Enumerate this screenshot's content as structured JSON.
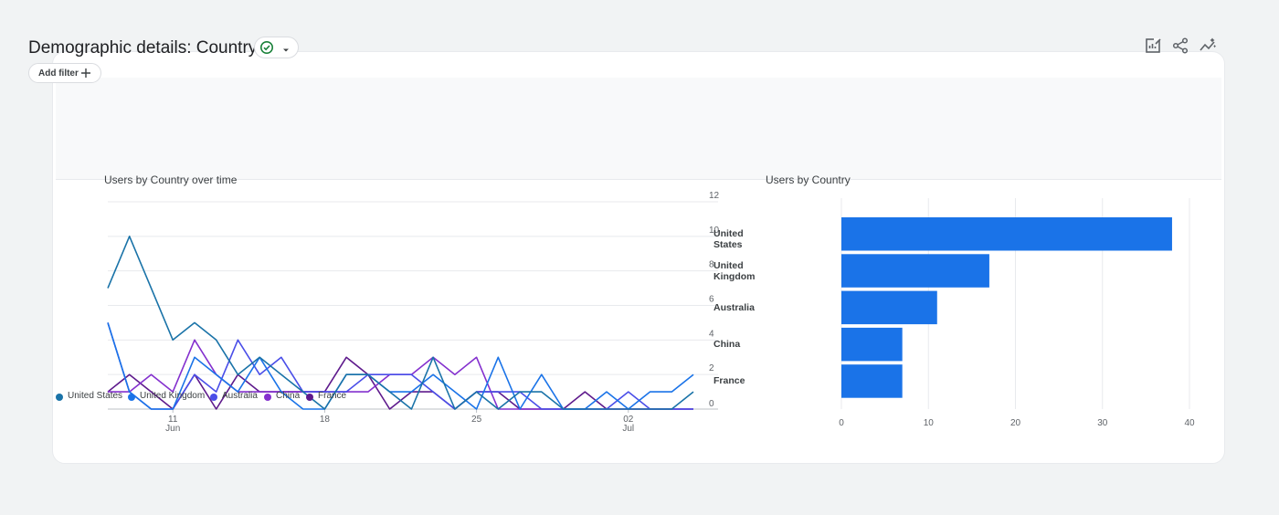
{
  "header": {
    "title": "Demographic details: Country",
    "add_filter_label": "Add filter",
    "icons": [
      "check-circle-icon",
      "caret-down-icon",
      "plus-icon",
      "customize-report-icon",
      "share-icon",
      "insights-icon"
    ],
    "colors": {
      "check": "#188038",
      "icon": "#5f6368"
    }
  },
  "line_card": {
    "title": "Users by Country over time"
  },
  "bar_card": {
    "title": "Users by Country"
  },
  "chart_data": [
    {
      "type": "line",
      "title": "Users by Country over time",
      "x_tick_labels": [
        {
          "date": "2023-06-11",
          "lines": [
            "11",
            "Jun"
          ]
        },
        {
          "date": "2023-06-18",
          "lines": [
            "18"
          ]
        },
        {
          "date": "2023-06-25",
          "lines": [
            "25"
          ]
        },
        {
          "date": "2023-07-02",
          "lines": [
            "02",
            "Jul"
          ]
        }
      ],
      "x": [
        "2023-06-08",
        "2023-06-09",
        "2023-06-10",
        "2023-06-11",
        "2023-06-12",
        "2023-06-13",
        "2023-06-14",
        "2023-06-15",
        "2023-06-16",
        "2023-06-17",
        "2023-06-18",
        "2023-06-19",
        "2023-06-20",
        "2023-06-21",
        "2023-06-22",
        "2023-06-23",
        "2023-06-24",
        "2023-06-25",
        "2023-06-26",
        "2023-06-27",
        "2023-06-28",
        "2023-06-29",
        "2023-06-30",
        "2023-07-01",
        "2023-07-02",
        "2023-07-03",
        "2023-07-04",
        "2023-07-05"
      ],
      "y_ticks": [
        0,
        2,
        4,
        6,
        8,
        10,
        12
      ],
      "ylim": [
        0,
        12
      ],
      "y_axis_side": "right",
      "grid": true,
      "legend_position": "bottom",
      "series": [
        {
          "name": "United States",
          "color": "#1a73a8",
          "values": [
            7,
            10,
            7,
            4,
            5,
            4,
            2,
            3,
            2,
            1,
            0,
            2,
            2,
            1,
            0,
            3,
            0,
            1,
            0,
            1,
            1,
            0,
            0,
            0,
            0,
            0,
            0,
            1
          ]
        },
        {
          "name": "United Kingdom",
          "color": "#1a73e8",
          "values": [
            5,
            1,
            0,
            0,
            3,
            2,
            1,
            3,
            1,
            0,
            0,
            2,
            2,
            1,
            1,
            2,
            1,
            0,
            3,
            0,
            2,
            0,
            0,
            1,
            0,
            1,
            1,
            2
          ]
        },
        {
          "name": "Australia",
          "color": "#4a4ee8",
          "values": [
            5,
            1,
            0,
            0,
            2,
            1,
            4,
            2,
            3,
            1,
            1,
            1,
            2,
            2,
            2,
            1,
            0,
            1,
            1,
            1,
            0,
            0,
            0,
            0,
            1,
            0,
            0,
            0
          ]
        },
        {
          "name": "China",
          "color": "#8430ce",
          "values": [
            1,
            1,
            2,
            1,
            4,
            2,
            1,
            1,
            1,
            1,
            1,
            1,
            1,
            2,
            2,
            3,
            2,
            3,
            0,
            0,
            0,
            0,
            0,
            0,
            0,
            0,
            0,
            0
          ]
        },
        {
          "name": "France",
          "color": "#5e1a8c",
          "values": [
            1,
            2,
            1,
            0,
            2,
            0,
            2,
            1,
            1,
            1,
            1,
            3,
            2,
            0,
            1,
            1,
            0,
            1,
            1,
            0,
            0,
            0,
            1,
            0,
            0,
            0,
            0,
            0
          ]
        }
      ]
    },
    {
      "type": "bar",
      "orientation": "horizontal",
      "title": "Users by Country",
      "categories": [
        "United States",
        "United Kingdom",
        "Australia",
        "China",
        "France"
      ],
      "values": [
        38,
        17,
        11,
        7,
        7
      ],
      "x_ticks": [
        0,
        10,
        20,
        30,
        40
      ],
      "xlim": [
        0,
        40
      ],
      "grid": true,
      "color": "#1a73e8"
    }
  ]
}
